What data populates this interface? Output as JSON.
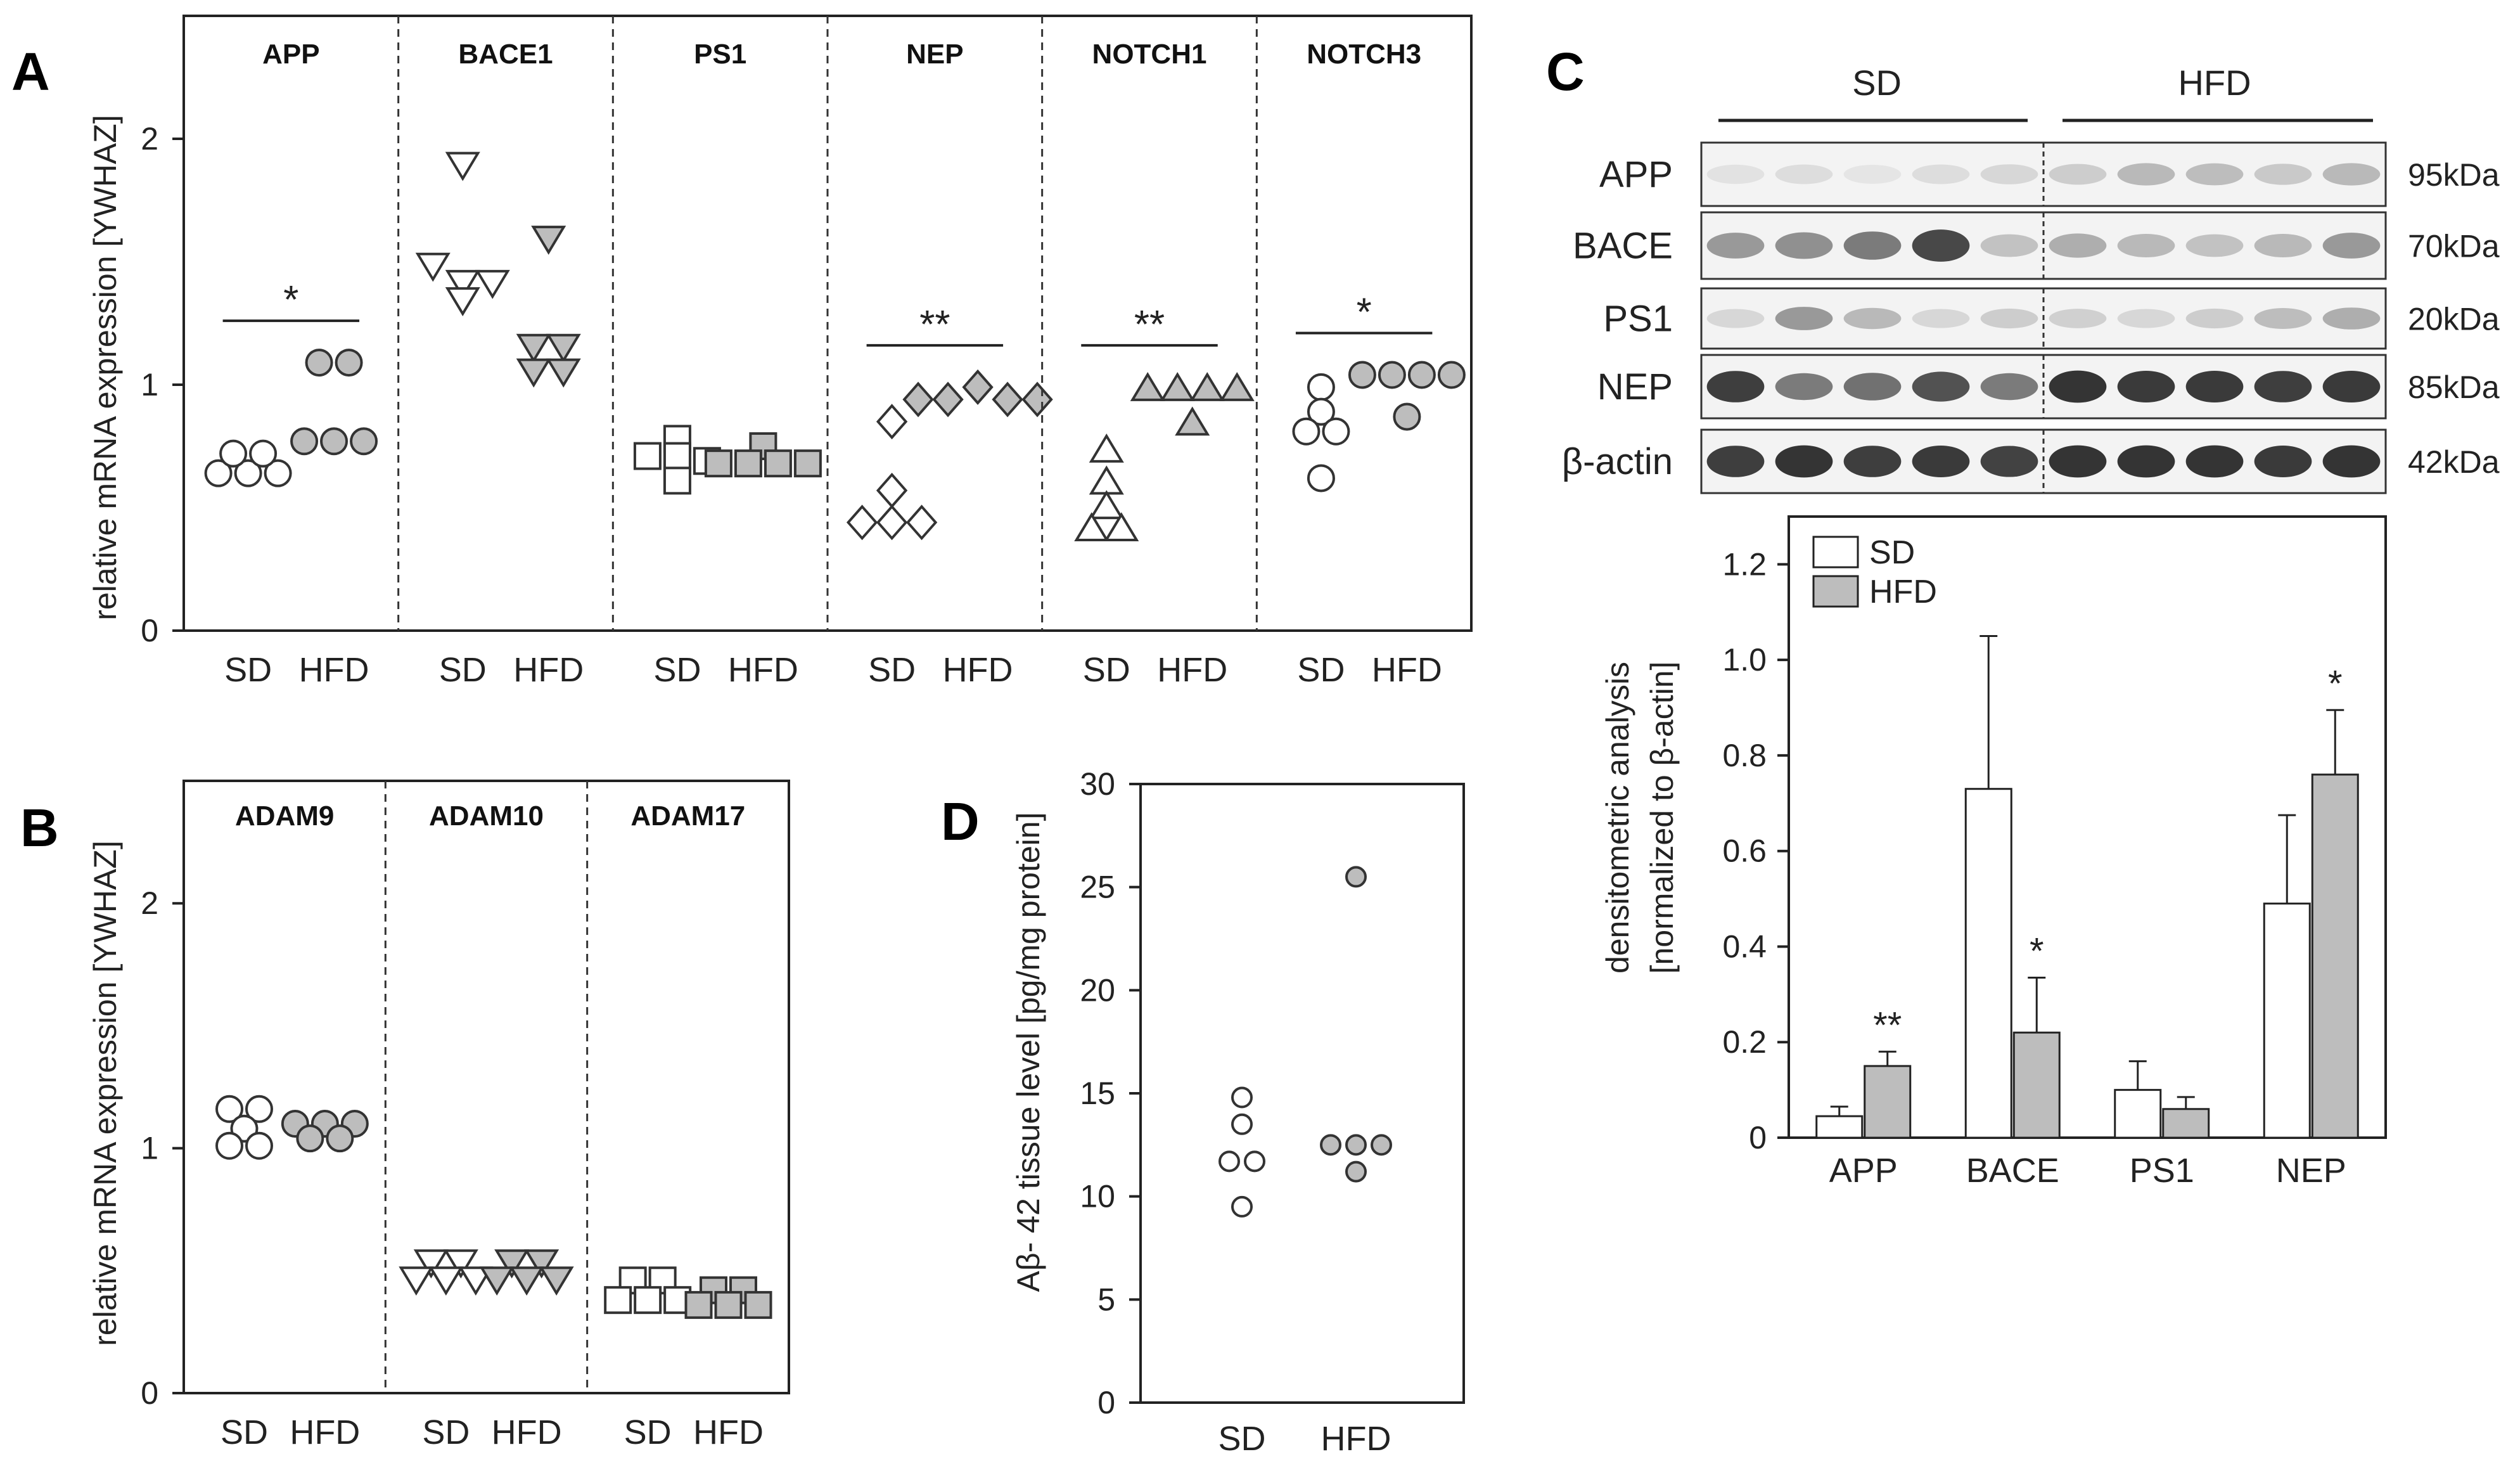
{
  "panel_letters": {
    "A": "A",
    "B": "B",
    "C": "C",
    "D": "D"
  },
  "colors": {
    "hfd_fill": "#bdbdbd",
    "sd_fill": "#ffffff",
    "stroke": "#333333"
  },
  "chart_data": [
    {
      "id": "A",
      "type": "scatter",
      "ylabel": "relative mRNA expression [YWHAZ]",
      "ylim": [
        0,
        2.5
      ],
      "yticks": [
        "0",
        "1",
        "2"
      ],
      "groups": [
        {
          "gene": "APP",
          "marker": "circle",
          "sig": "*",
          "SD": [
            0.64,
            0.64,
            0.64,
            0.72,
            0.72
          ],
          "HFD": [
            0.77,
            0.77,
            0.77,
            1.09,
            1.09
          ]
        },
        {
          "gene": "BACE1",
          "marker": "triangle-down",
          "sig": "",
          "SD": [
            1.89,
            1.48,
            1.41,
            1.41,
            1.34
          ],
          "HFD": [
            1.59,
            1.15,
            1.15,
            1.05,
            1.05
          ]
        },
        {
          "gene": "PS1",
          "marker": "square",
          "sig": "",
          "SD": [
            0.78,
            0.71,
            0.71,
            0.61,
            0.69
          ],
          "HFD": [
            0.75,
            0.68,
            0.68,
            0.68,
            0.68
          ]
        },
        {
          "gene": "NEP",
          "marker": "diamond",
          "sig": "**",
          "SD": [
            0.85,
            0.57,
            0.44,
            0.44,
            0.44
          ],
          "HFD": [
            0.94,
            0.94,
            0.99,
            0.94,
            0.94
          ]
        },
        {
          "gene": "NOTCH1",
          "marker": "triangle-up",
          "sig": "**",
          "SD": [
            0.74,
            0.61,
            0.51,
            0.42,
            0.42
          ],
          "HFD": [
            0.99,
            0.99,
            0.99,
            0.99,
            0.85
          ]
        },
        {
          "gene": "NOTCH3",
          "marker": "circle",
          "sig": "*",
          "SD": [
            0.99,
            0.89,
            0.81,
            0.81,
            0.62
          ],
          "HFD": [
            1.04,
            1.04,
            1.04,
            1.04,
            0.87
          ]
        }
      ],
      "xlabels": [
        "SD",
        "HFD"
      ]
    },
    {
      "id": "B",
      "type": "scatter",
      "ylabel": "relative mRNA expression [YWHAZ]",
      "ylim": [
        0,
        2.5
      ],
      "yticks": [
        "0",
        "1",
        "2"
      ],
      "groups": [
        {
          "gene": "ADAM9",
          "marker": "circle",
          "sig": "",
          "SD": [
            1.16,
            1.16,
            1.08,
            1.01,
            1.01
          ],
          "HFD": [
            1.1,
            1.1,
            1.1,
            1.04,
            1.04
          ]
        },
        {
          "gene": "ADAM10",
          "marker": "triangle-down",
          "sig": "",
          "SD": [
            0.53,
            0.53,
            0.46,
            0.46,
            0.46
          ],
          "HFD": [
            0.53,
            0.53,
            0.46,
            0.46,
            0.46
          ]
        },
        {
          "gene": "ADAM17",
          "marker": "square",
          "sig": "",
          "SD": [
            0.46,
            0.46,
            0.38,
            0.38,
            0.38
          ],
          "HFD": [
            0.42,
            0.42,
            0.36,
            0.36,
            0.36
          ]
        }
      ],
      "xlabels": [
        "SD",
        "HFD"
      ]
    },
    {
      "id": "C",
      "type": "bar",
      "ylabel_line1": "densitometric analysis",
      "ylabel_line2": "[normalized to β-actin]",
      "ylim": [
        0,
        1.3
      ],
      "yticks": [
        "0",
        "0.2",
        "0.4",
        "0.6",
        "0.8",
        "1.0",
        "1.2"
      ],
      "categories": [
        "APP",
        "BACE",
        "PS1",
        "NEP"
      ],
      "series": [
        {
          "name": "SD",
          "values": [
            0.045,
            0.73,
            0.1,
            0.49
          ],
          "errors": [
            0.02,
            0.32,
            0.06,
            0.185
          ]
        },
        {
          "name": "HFD",
          "values": [
            0.15,
            0.22,
            0.06,
            0.76
          ],
          "errors": [
            0.03,
            0.115,
            0.025,
            0.135
          ]
        }
      ],
      "significance": [
        "**",
        "*",
        "",
        "*"
      ],
      "legend": [
        "SD",
        "HFD"
      ]
    },
    {
      "id": "D",
      "type": "scatter",
      "ylabel": "Aβ- 42 tissue level [pg/mg protein]",
      "ylim": [
        0,
        30
      ],
      "yticks": [
        "0",
        "5",
        "10",
        "15",
        "20",
        "25",
        "30"
      ],
      "xlabels": [
        "SD",
        "HFD"
      ],
      "SD": [
        14.8,
        13.5,
        11.7,
        11.7,
        9.5
      ],
      "HFD": [
        25.5,
        12.5,
        12.5,
        12.5,
        11.2
      ]
    }
  ],
  "western_blot": {
    "groups": [
      "SD",
      "HFD"
    ],
    "bands": [
      {
        "protein": "APP",
        "size": "95kDa"
      },
      {
        "protein": "BACE",
        "size": "70kDa"
      },
      {
        "protein": "PS1",
        "size": "20kDa"
      },
      {
        "protein": "NEP",
        "size": "85kDa"
      },
      {
        "protein": "β-actin",
        "size": "42kDa"
      }
    ],
    "intensity": [
      [
        0.1,
        0.12,
        0.08,
        0.12,
        0.15,
        0.2,
        0.3,
        0.28,
        0.22,
        0.3
      ],
      [
        0.45,
        0.5,
        0.6,
        0.85,
        0.25,
        0.35,
        0.3,
        0.25,
        0.3,
        0.45
      ],
      [
        0.15,
        0.45,
        0.3,
        0.15,
        0.2,
        0.18,
        0.15,
        0.2,
        0.28,
        0.35
      ],
      [
        0.9,
        0.6,
        0.65,
        0.8,
        0.6,
        0.95,
        0.92,
        0.92,
        0.9,
        0.92
      ],
      [
        0.9,
        0.95,
        0.9,
        0.92,
        0.88,
        0.95,
        0.95,
        0.95,
        0.92,
        0.95
      ]
    ]
  }
}
